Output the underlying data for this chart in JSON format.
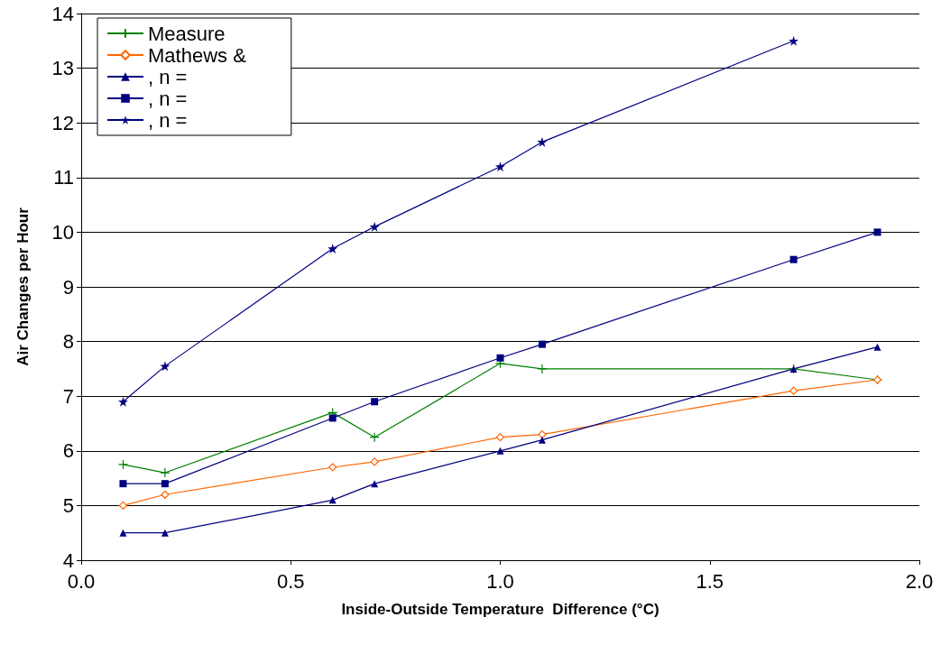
{
  "chart_data": {
    "type": "line",
    "xlabel": "Inside-Outside Temperature  Difference (°C)",
    "ylabel": "Air Changes per Hour",
    "x": [
      0.1,
      0.2,
      0.6,
      0.7,
      1.0,
      1.1,
      1.7,
      1.9
    ],
    "series": [
      {
        "name": "Measure",
        "color": "#008000",
        "marker": "cross",
        "values": [
          5.75,
          5.6,
          6.7,
          6.25,
          7.6,
          7.5,
          7.5,
          7.3
        ]
      },
      {
        "name": "Mathews &",
        "color": "#ff6600",
        "marker": "diamond",
        "values": [
          5.0,
          5.2,
          5.7,
          5.8,
          6.25,
          6.3,
          7.1,
          7.3
        ]
      },
      {
        "name": ", n =",
        "color": "#000080",
        "marker": "triangle",
        "values": [
          4.5,
          4.5,
          5.1,
          5.4,
          6.0,
          6.2,
          7.5,
          7.9
        ]
      },
      {
        "name": ", n =",
        "color": "#000080",
        "marker": "square",
        "values": [
          5.4,
          5.4,
          6.6,
          6.9,
          7.7,
          7.95,
          9.5,
          10.0
        ]
      },
      {
        "name": ", n =",
        "color": "#000080",
        "marker": "star",
        "values": [
          6.9,
          7.55,
          9.7,
          10.1,
          11.2,
          11.65,
          13.5,
          null
        ]
      }
    ],
    "xlim": [
      0,
      2
    ],
    "xticks": [
      {
        "value": 0,
        "label": "0.0"
      },
      {
        "value": 0.5,
        "label": "0.5"
      },
      {
        "value": 1,
        "label": "1.0"
      },
      {
        "value": 1.5,
        "label": "1.5"
      },
      {
        "value": 2,
        "label": "2.0"
      }
    ],
    "ylim": [
      4,
      14
    ],
    "yticks": [
      4,
      5,
      6,
      7,
      8,
      9,
      10,
      11,
      12,
      13,
      14
    ],
    "grid": "y",
    "legend": "top left",
    "line_style": "solid"
  }
}
